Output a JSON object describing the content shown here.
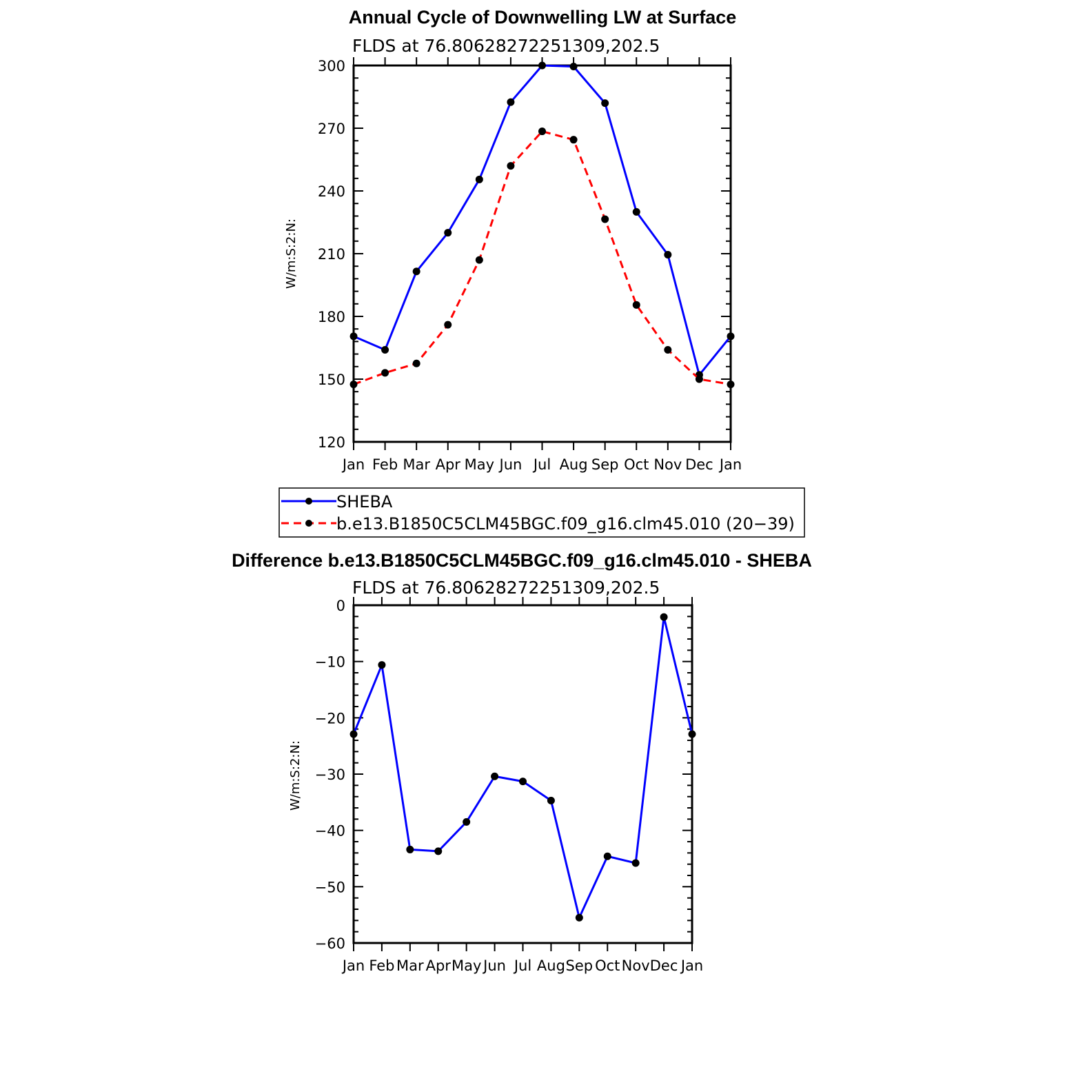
{
  "chart_data": [
    {
      "type": "line",
      "title": "Annual Cycle of Downwelling LW at Surface",
      "subtitle": "FLDS at 76.80628272251309,202.5",
      "xlabel": "",
      "ylabel": "W/m:S:2:N:",
      "categories": [
        "Jan",
        "Feb",
        "Mar",
        "Apr",
        "May",
        "Jun",
        "Jul",
        "Aug",
        "Sep",
        "Oct",
        "Nov",
        "Dec",
        "Jan"
      ],
      "ylim": [
        120,
        300
      ],
      "yticks": [
        "120",
        "150",
        "180",
        "210",
        "240",
        "270",
        "300"
      ],
      "series": [
        {
          "name": "SHEBA",
          "color": "#0000ff",
          "dash": "solid",
          "values": [
            170.5,
            164,
            201.5,
            220,
            245.5,
            282.5,
            300,
            299.5,
            282,
            230,
            209.5,
            152,
            170.5
          ]
        },
        {
          "name": "b.e13.B1850C5CLM45BGC.f09_g16.clm45.010 (20−39)",
          "color": "#ff0000",
          "dash": "dashed",
          "values": [
            147.5,
            153,
            157.5,
            176,
            207,
            252,
            268.5,
            264.5,
            226.5,
            185.5,
            164,
            150,
            147.5
          ]
        }
      ],
      "legend_position": "bottom"
    },
    {
      "type": "line",
      "title": "Difference b.e13.B1850C5CLM45BGC.f09_g16.clm45.010 - SHEBA",
      "subtitle": "FLDS at 76.80628272251309,202.5",
      "xlabel": "",
      "ylabel": "W/m:S:2:N:",
      "categories": [
        "Jan",
        "Feb",
        "Mar",
        "Apr",
        "May",
        "Jun",
        "Jul",
        "Aug",
        "Sep",
        "Oct",
        "Nov",
        "Dec",
        "Jan"
      ],
      "ylim": [
        -60,
        0
      ],
      "yticks": [
        "−60",
        "−50",
        "−40",
        "−30",
        "−20",
        "−10",
        "0"
      ],
      "series": [
        {
          "name": "Difference",
          "color": "#0000ff",
          "dash": "solid",
          "values": [
            -22.9,
            -10.6,
            -43.4,
            -43.7,
            -38.5,
            -30.4,
            -31.3,
            -34.7,
            -55.5,
            -44.6,
            -45.8,
            -2.1,
            -22.9
          ]
        }
      ]
    }
  ]
}
